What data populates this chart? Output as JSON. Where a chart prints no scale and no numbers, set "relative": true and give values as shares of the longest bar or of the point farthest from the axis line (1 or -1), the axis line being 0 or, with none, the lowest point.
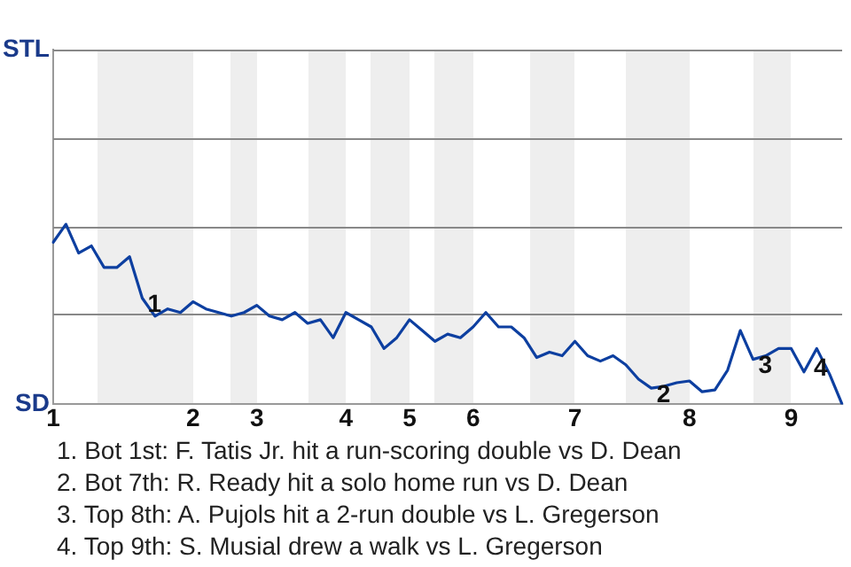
{
  "chart_data": {
    "type": "line",
    "relative": true,
    "categories": [
      "1",
      null,
      null,
      null,
      null,
      null,
      null,
      null,
      null,
      null,
      null,
      "2",
      null,
      null,
      null,
      null,
      "3",
      null,
      null,
      null,
      null,
      null,
      null,
      "4",
      null,
      null,
      null,
      null,
      "5",
      null,
      null,
      null,
      null,
      "6",
      null,
      null,
      null,
      null,
      null,
      null,
      null,
      "7",
      null,
      null,
      null,
      null,
      null,
      null,
      null,
      null,
      "8",
      null,
      null,
      null,
      null,
      null,
      null,
      null,
      "9",
      null,
      null,
      null,
      null
    ],
    "series": [
      {
        "color": "#0d3fa0",
        "values": [
          0.9,
          1,
          0.84,
          0.88,
          0.76,
          0.76,
          0.82,
          0.59,
          0.49,
          0.53,
          0.51,
          0.57,
          0.53,
          0.51,
          0.49,
          0.51,
          0.55,
          0.49,
          0.47,
          0.51,
          0.45,
          0.47,
          0.37,
          0.51,
          0.47,
          0.43,
          0.31,
          0.37,
          0.47,
          0.41,
          0.35,
          0.39,
          0.37,
          0.43,
          0.51,
          0.43,
          0.43,
          0.37,
          0.26,
          0.29,
          0.27,
          0.35,
          0.27,
          0.24,
          0.27,
          0.22,
          0.14,
          0.09,
          0.1,
          0.12,
          0.13,
          0.07,
          0.08,
          0.19,
          0.41,
          0.25,
          0.27,
          0.31,
          0.31,
          0.18,
          0.31,
          0.17,
          0
        ]
      }
    ],
    "annotations": [
      "STL",
      "SD",
      {
        "text": "1",
        "y": 0.59
      },
      {
        "text": "2",
        "y": 0.09
      },
      {
        "text": "3",
        "y": 0.25
      },
      {
        "text": "4",
        "y": 0.17
      },
      "1. Bot 1st: F. Tatis Jr. hit a run-scoring double vs D. Dean",
      "2. Bot 7th: R. Ready hit a solo home run vs D. Dean",
      "3. Top 8th: A. Pujols hit a 2-run double vs L. Gregerson",
      "4. Top 9th: S. Musial drew a walk vs L. Gregerson"
    ],
    "ref_lines": [
      {
        "axis": "y",
        "value": 0.5,
        "color": "#888888"
      },
      {
        "axis": "y",
        "value": 0.99,
        "color": "#888888"
      },
      {
        "axis": "y",
        "value": 1.48,
        "color": "#888888"
      },
      {
        "axis": "y",
        "value": 1.97,
        "color": "#888888"
      }
    ],
    "legend": false,
    "marker": "none",
    "line_style": "solid"
  }
}
